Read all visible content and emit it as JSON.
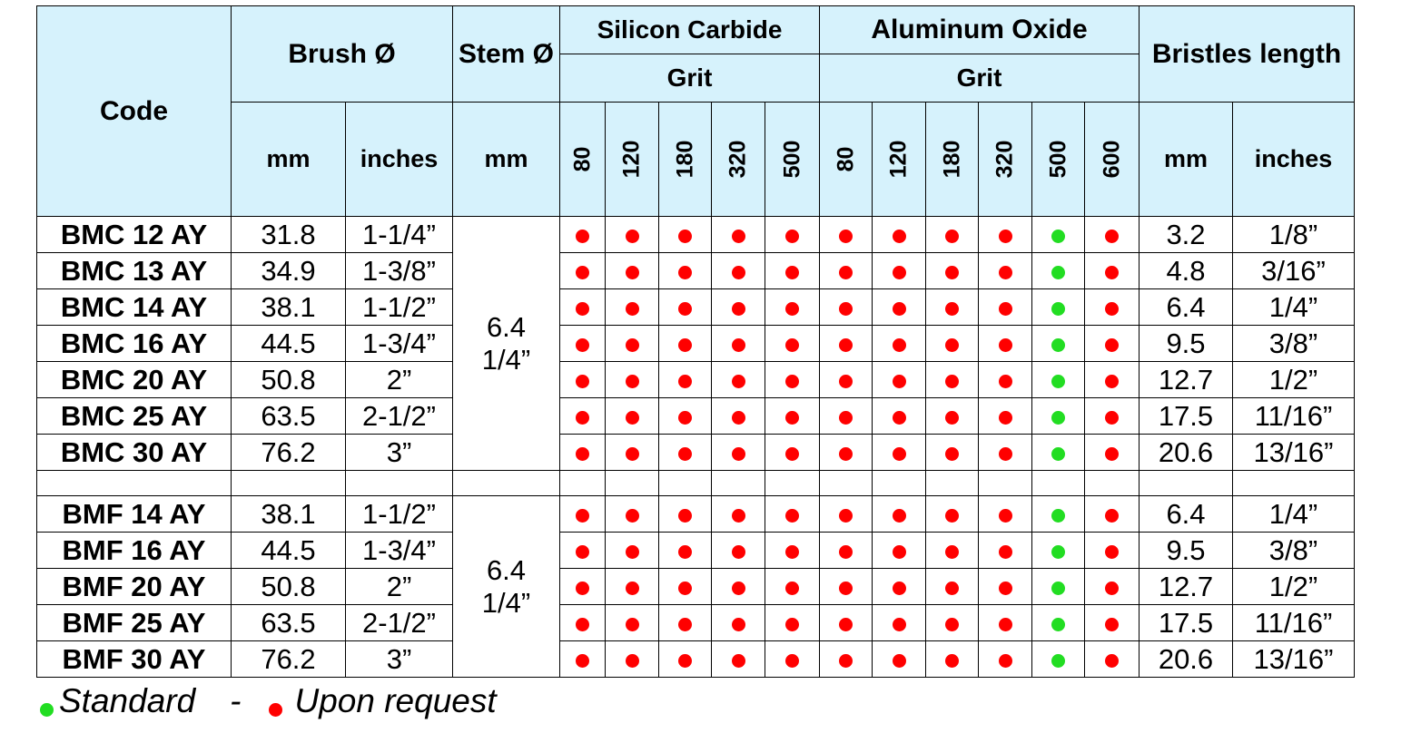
{
  "colors": {
    "header_bg": "#d6f2fc",
    "standard": "#22dd22",
    "upon_request": "#ff0000"
  },
  "header": {
    "code": "Code",
    "brush": "Brush Ø",
    "stem": "Stem Ø",
    "silicon_carbide": "Silicon Carbide",
    "aluminum_oxide": "Aluminum Oxide",
    "grit_sc": "Grit",
    "grit_ao": "Grit",
    "bristles": "Bristles length",
    "brush_mm": "mm",
    "brush_inches": "inches",
    "stem_mm": "mm",
    "bristles_mm": "mm",
    "bristles_inches": "inches",
    "sc_grits": [
      "80",
      "120",
      "180",
      "320",
      "500"
    ],
    "ao_grits": [
      "80",
      "120",
      "180",
      "320",
      "500",
      "600"
    ]
  },
  "groups": [
    {
      "stem_mm": "6.4",
      "stem_in": "1/4”",
      "rows": [
        {
          "code": "BMC 12 AY",
          "brush_mm": "31.8",
          "brush_in": "1-1/4”",
          "bristle_mm": "3.2",
          "bristle_in": "1/8”"
        },
        {
          "code": "BMC 13 AY",
          "brush_mm": "34.9",
          "brush_in": "1-3/8”",
          "bristle_mm": "4.8",
          "bristle_in": "3/16”"
        },
        {
          "code": "BMC 14 AY",
          "brush_mm": "38.1",
          "brush_in": "1-1/2”",
          "bristle_mm": "6.4",
          "bristle_in": "1/4”"
        },
        {
          "code": "BMC 16 AY",
          "brush_mm": "44.5",
          "brush_in": "1-3/4”",
          "bristle_mm": "9.5",
          "bristle_in": "3/8”"
        },
        {
          "code": "BMC 20 AY",
          "brush_mm": "50.8",
          "brush_in": "2”",
          "bristle_mm": "12.7",
          "bristle_in": "1/2”"
        },
        {
          "code": "BMC 25 AY",
          "brush_mm": "63.5",
          "brush_in": "2-1/2”",
          "bristle_mm": "17.5",
          "bristle_in": "11/16”"
        },
        {
          "code": "BMC 30 AY",
          "brush_mm": "76.2",
          "brush_in": "3”",
          "bristle_mm": "20.6",
          "bristle_in": "13/16”"
        }
      ]
    },
    {
      "stem_mm": "6.4",
      "stem_in": "1/4”",
      "rows": [
        {
          "code": "BMF 14 AY",
          "brush_mm": "38.1",
          "brush_in": "1-1/2”",
          "bristle_mm": "6.4",
          "bristle_in": "1/4”"
        },
        {
          "code": "BMF 16 AY",
          "brush_mm": "44.5",
          "brush_in": "1-3/4”",
          "bristle_mm": "9.5",
          "bristle_in": "3/8”"
        },
        {
          "code": "BMF 20 AY",
          "brush_mm": "50.8",
          "brush_in": "2”",
          "bristle_mm": "12.7",
          "bristle_in": "1/2”"
        },
        {
          "code": "BMF 25 AY",
          "brush_mm": "63.5",
          "brush_in": "2-1/2”",
          "bristle_mm": "17.5",
          "bristle_in": "11/16”"
        },
        {
          "code": "BMF 30 AY",
          "brush_mm": "76.2",
          "brush_in": "3”",
          "bristle_mm": "20.6",
          "bristle_in": "13/16”"
        }
      ]
    }
  ],
  "availability_pattern": {
    "silicon_carbide": [
      "upon_request",
      "upon_request",
      "upon_request",
      "upon_request",
      "upon_request"
    ],
    "aluminum_oxide": [
      "upon_request",
      "upon_request",
      "upon_request",
      "upon_request",
      "standard",
      "upon_request"
    ]
  },
  "legend": {
    "standard": "Standard",
    "separator": "-",
    "upon_request": "Upon request"
  }
}
